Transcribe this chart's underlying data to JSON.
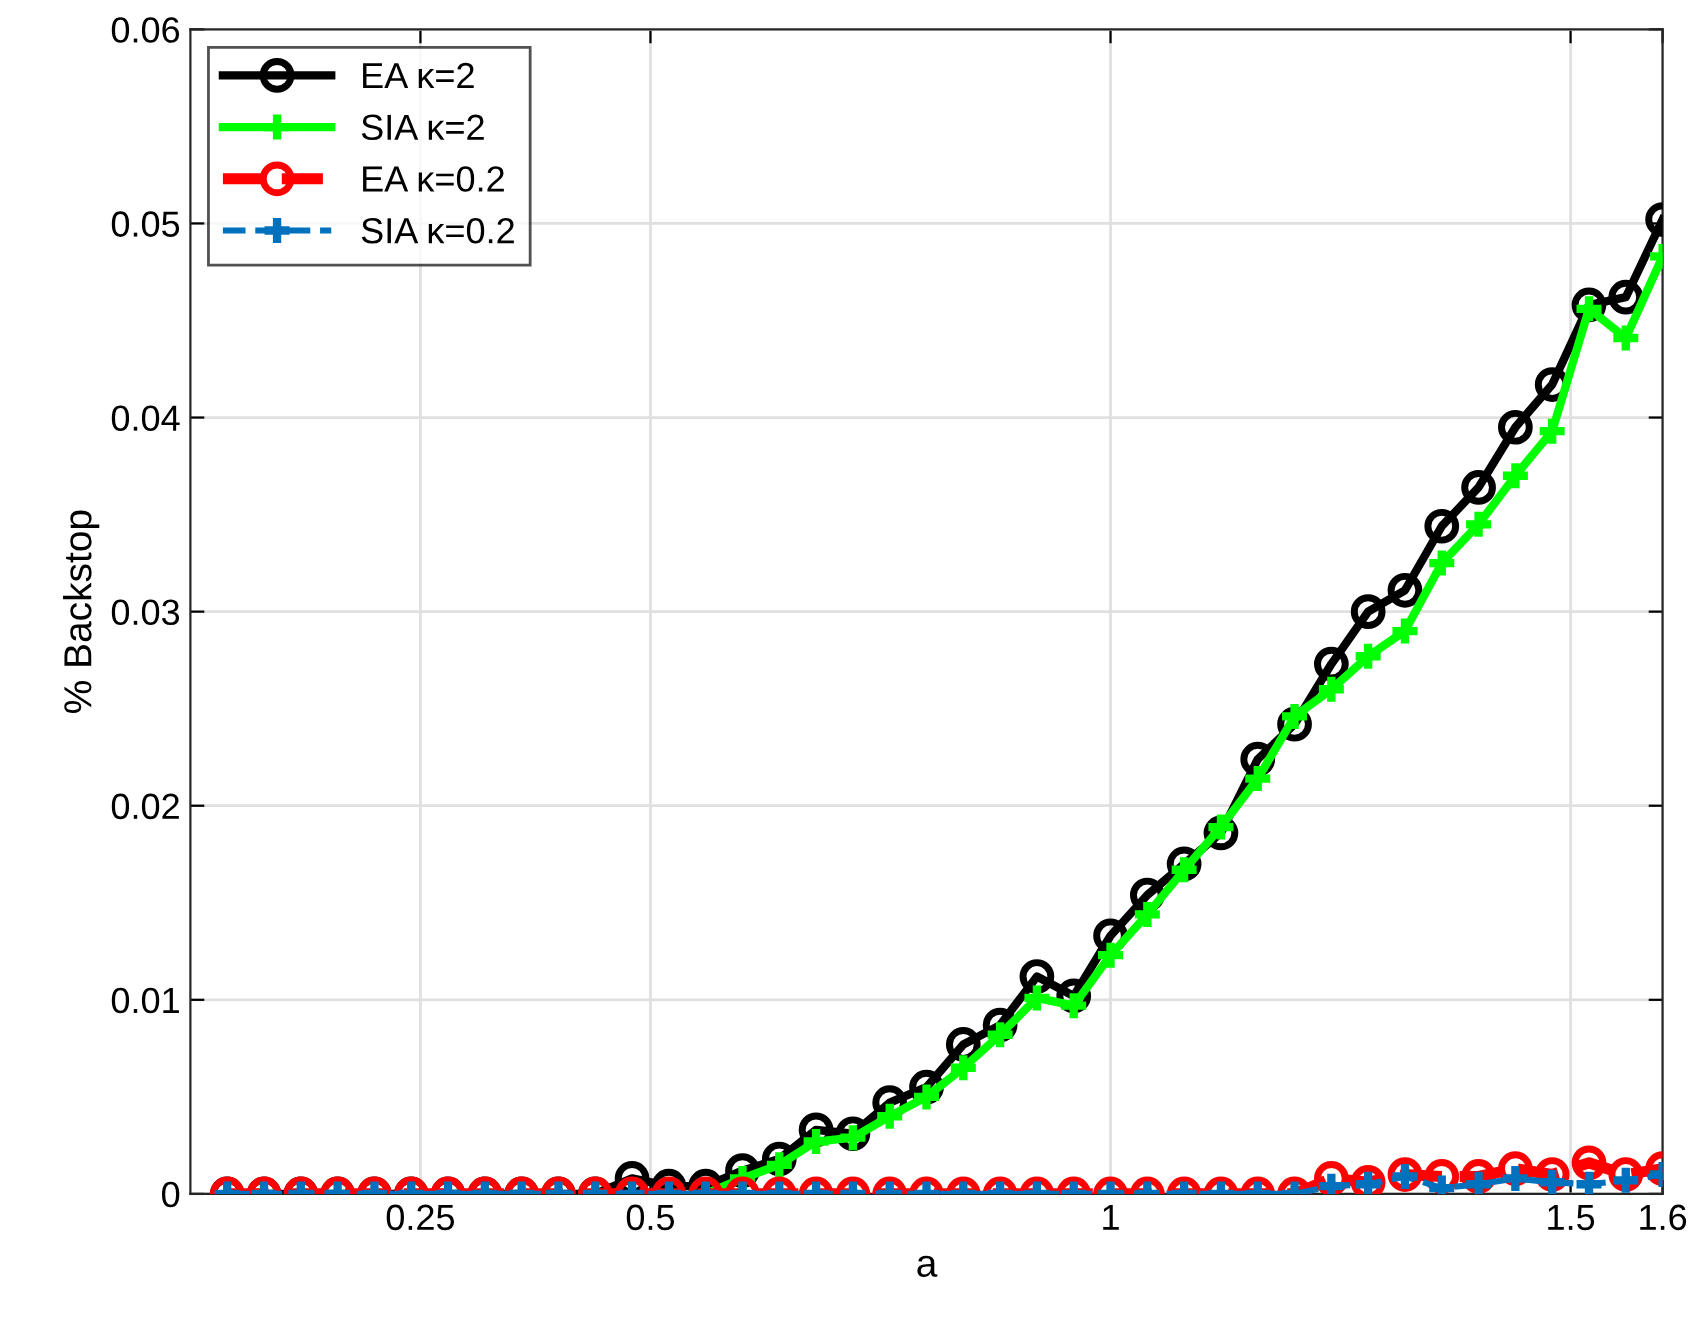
{
  "chart_data": {
    "type": "line",
    "xlabel": "a",
    "ylabel": "% Backstop",
    "x": [
      0.04,
      0.08,
      0.12,
      0.16,
      0.2,
      0.24,
      0.28,
      0.32,
      0.36,
      0.4,
      0.44,
      0.48,
      0.52,
      0.56,
      0.6,
      0.64,
      0.68,
      0.72,
      0.76,
      0.8,
      0.84,
      0.88,
      0.92,
      0.96,
      1.0,
      1.04,
      1.08,
      1.12,
      1.16,
      1.2,
      1.24,
      1.28,
      1.32,
      1.36,
      1.4,
      1.44,
      1.48,
      1.52,
      1.56,
      1.6
    ],
    "series": [
      {
        "name": "EA κ=2",
        "color": "#000000",
        "marker": "circle",
        "line_style": "solid",
        "values": [
          0,
          0,
          0,
          0,
          0,
          0,
          0,
          0,
          0,
          0,
          0,
          0.0008,
          0.0004,
          0.0004,
          0.0012,
          0.0018,
          0.0033,
          0.0031,
          0.0047,
          0.0055,
          0.0077,
          0.0087,
          0.0112,
          0.0102,
          0.0133,
          0.0154,
          0.017,
          0.0186,
          0.0224,
          0.0242,
          0.0273,
          0.03,
          0.0311,
          0.0344,
          0.0364,
          0.0395,
          0.0417,
          0.0458,
          0.0462,
          0.0502
        ]
      },
      {
        "name": "SIA κ=2",
        "color": "#00ff00",
        "marker": "cross",
        "line_style": "solid",
        "values": [
          null,
          null,
          null,
          null,
          null,
          null,
          null,
          null,
          null,
          null,
          null,
          null,
          null,
          0,
          0.0008,
          0.0015,
          0.0027,
          0.0029,
          0.004,
          0.005,
          0.0065,
          0.0082,
          0.0101,
          0.0097,
          0.0123,
          0.0144,
          0.0167,
          0.0189,
          0.0214,
          0.0246,
          0.026,
          0.0277,
          0.029,
          0.0325,
          0.0345,
          0.037,
          0.0393,
          0.0456,
          0.0441,
          0.0483
        ]
      },
      {
        "name": "EA κ=0.2",
        "color": "#ff0000",
        "marker": "circle",
        "line_style": "dashed",
        "values": [
          0,
          0,
          0,
          0,
          0,
          0,
          0,
          0,
          0,
          0,
          0,
          0,
          0,
          0,
          0,
          0,
          0,
          0,
          0,
          0,
          0,
          0,
          0,
          0,
          0,
          0,
          0,
          0,
          0,
          0,
          0.0008,
          0.0006,
          0.001,
          0.0009,
          0.0009,
          0.0013,
          0.001,
          0.0016,
          0.001,
          0.0013
        ]
      },
      {
        "name": "SIA κ=0.2",
        "color": "#0072bd",
        "marker": "cross",
        "line_style": "dashed",
        "values": [
          0,
          0,
          0,
          0,
          0,
          0,
          0,
          0,
          0,
          0,
          0,
          0,
          0,
          0,
          0,
          0,
          0,
          0,
          0,
          0,
          0,
          0,
          0,
          0,
          0,
          0,
          0,
          0,
          0,
          0,
          0.0004,
          0.0005,
          0.0009,
          0.0003,
          0.0005,
          0.0008,
          0.0006,
          0.0005,
          0.0007,
          0.001
        ]
      }
    ],
    "xlim": [
      0,
      1.6
    ],
    "xticks": [
      0.25,
      0.5,
      1,
      1.5,
      1.6
    ],
    "ylim": [
      0,
      0.06
    ],
    "yticks": [
      0,
      0.01,
      0.02,
      0.03,
      0.04,
      0.05,
      0.06
    ],
    "grid": true,
    "legend": "top left"
  }
}
